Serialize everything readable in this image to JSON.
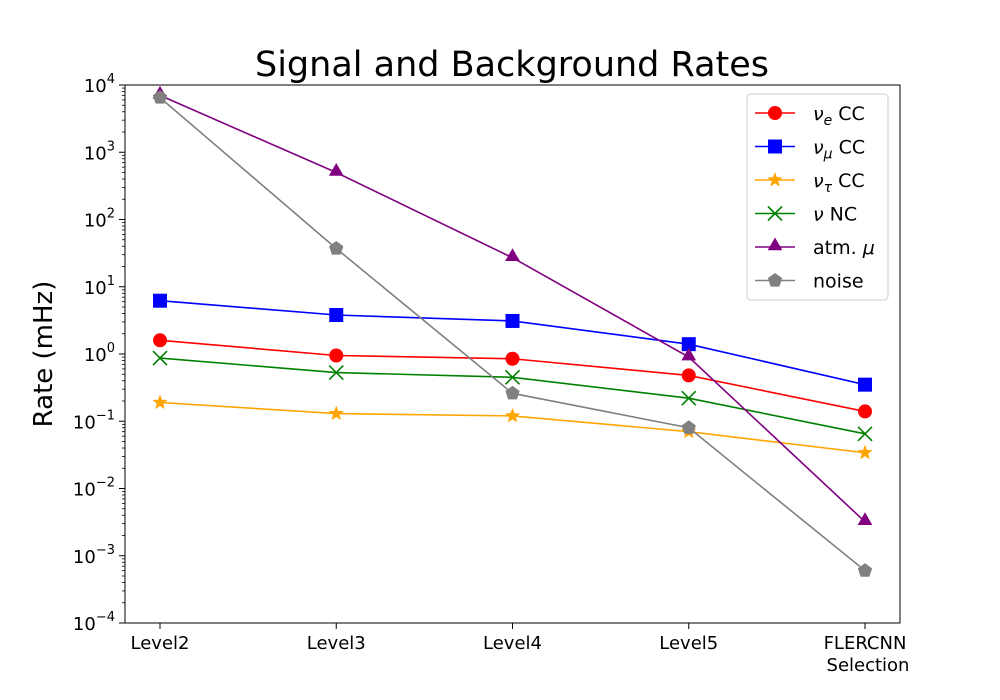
{
  "chart_data": {
    "type": "line",
    "title": "Signal and Background Rates",
    "xlabel": "",
    "ylabel": "Rate (mHz)",
    "yscale": "log",
    "ylim": [
      0.0001,
      10000
    ],
    "grid": false,
    "legend_position": "top-right",
    "categories": [
      "Level2",
      "Level3",
      "Level4",
      "Level5",
      "FLERCNN\nSelection"
    ],
    "y_tick_labels": [
      {
        "base": "10",
        "exp": "−4",
        "value": 0.0001
      },
      {
        "base": "10",
        "exp": "−3",
        "value": 0.001
      },
      {
        "base": "10",
        "exp": "−2",
        "value": 0.01
      },
      {
        "base": "10",
        "exp": "−1",
        "value": 0.1
      },
      {
        "base": "10",
        "exp": "0",
        "value": 1
      },
      {
        "base": "10",
        "exp": "1",
        "value": 10
      },
      {
        "base": "10",
        "exp": "2",
        "value": 100
      },
      {
        "base": "10",
        "exp": "3",
        "value": 1000
      },
      {
        "base": "10",
        "exp": "4",
        "value": 10000
      }
    ],
    "series": [
      {
        "name": "νe CC",
        "label_main": "ν",
        "label_sub": "e",
        "label_rest": " CC",
        "color": "#ff0000",
        "marker": "circle",
        "values": [
          1.6,
          0.95,
          0.85,
          0.48,
          0.14
        ]
      },
      {
        "name": "νμ CC",
        "label_main": "ν",
        "label_sub": "μ",
        "label_rest": " CC",
        "color": "#0000ff",
        "marker": "square",
        "values": [
          6.2,
          3.8,
          3.1,
          1.4,
          0.35
        ]
      },
      {
        "name": "ντ CC",
        "label_main": "ν",
        "label_sub": "τ",
        "label_rest": " CC",
        "color": "#ffa500",
        "marker": "star",
        "values": [
          0.19,
          0.13,
          0.12,
          0.07,
          0.034
        ]
      },
      {
        "name": "ν NC",
        "label_main": "ν",
        "label_sub": "",
        "label_rest": " NC",
        "color": "#008000",
        "marker": "x",
        "values": [
          0.87,
          0.53,
          0.45,
          0.22,
          0.065
        ]
      },
      {
        "name": "atm. μ",
        "label_main": "atm. ",
        "label_sub": "",
        "label_rest": "μ",
        "color": "#800080",
        "marker": "triangle",
        "values": [
          7000,
          500,
          27,
          0.9,
          0.0032
        ]
      },
      {
        "name": "noise",
        "label_main": "noise",
        "label_sub": "",
        "label_rest": "",
        "color": "#808080",
        "marker": "pentagon",
        "values": [
          6500,
          37,
          0.26,
          0.08,
          0.0006
        ]
      }
    ]
  }
}
